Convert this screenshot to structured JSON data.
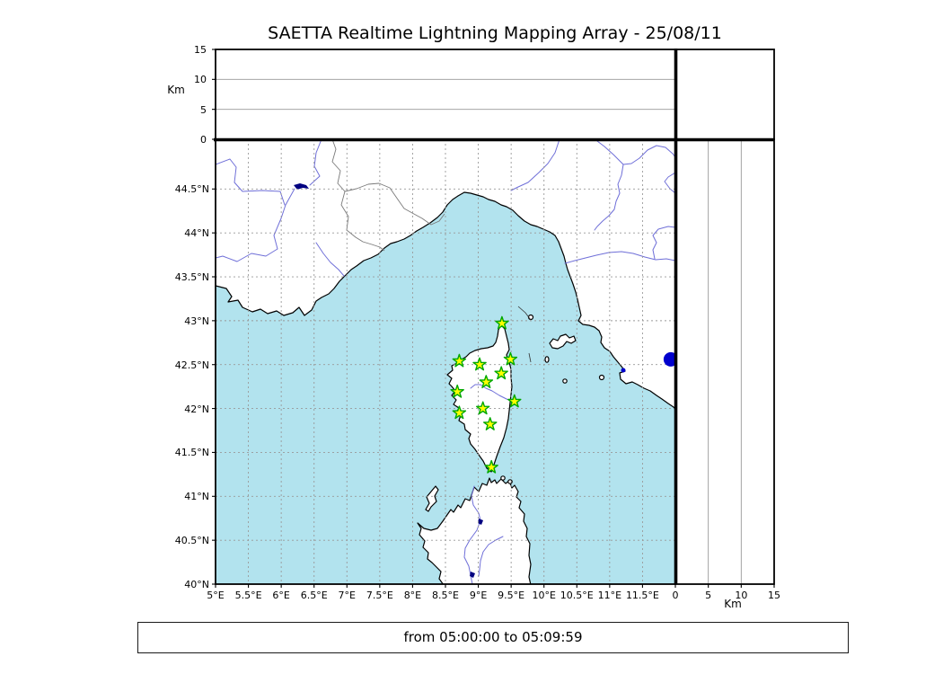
{
  "title": "SAETTA Realtime Lightning Mapping Array - 25/08/11",
  "time_range": "from 05:00:00 to 05:09:59",
  "colors": {
    "sea": "#b2e3ee",
    "land": "#ffffff",
    "coastline": "#000000",
    "river": "#6f6fd8",
    "country_border": "#7a7a7a",
    "gridline": "#999999",
    "frame": "#000000",
    "station_fill": "#ffff00",
    "station_stroke": "#00a800",
    "event_dot": "#0000cd",
    "lake": "#000080"
  },
  "map_axes": {
    "lon_range": [
      5,
      12
    ],
    "lat_range": [
      40,
      45.066
    ],
    "lon_tick_values": [
      5,
      5.5,
      6,
      6.5,
      7,
      7.5,
      8,
      8.5,
      9,
      9.5,
      10,
      10.5,
      11,
      11.5
    ],
    "lon_tick_labels": [
      "5°E",
      "5.5°E",
      "6°E",
      "6.5°E",
      "7°E",
      "7.5°E",
      "8°E",
      "8.5°E",
      "9°E",
      "9.5°E",
      "10°E",
      "10.5°E",
      "11°E",
      "11.5°E"
    ],
    "lat_tick_values": [
      40,
      40.5,
      41,
      41.5,
      42,
      42.5,
      43,
      43.5,
      44,
      44.5
    ],
    "lat_tick_labels": [
      "40°N",
      "40.5°N",
      "41°N",
      "41.5°N",
      "42°N",
      "42.5°N",
      "43°N",
      "43.5°N",
      "44°N",
      "44.5°N"
    ]
  },
  "altitude_axis": {
    "label": "Km",
    "range": [
      0,
      15
    ],
    "tick_values": [
      0,
      5,
      10,
      15
    ],
    "tick_labels": [
      "0",
      "5",
      "10",
      "15"
    ],
    "gridline_values": [
      5,
      10
    ]
  },
  "stations": [
    {
      "marker": "star",
      "lon": 9.36,
      "lat": 42.97
    },
    {
      "marker": "star",
      "lon": 8.71,
      "lat": 42.54
    },
    {
      "marker": "star",
      "lon": 9.02,
      "lat": 42.5
    },
    {
      "marker": "star",
      "lon": 9.49,
      "lat": 42.56
    },
    {
      "marker": "star",
      "lon": 9.35,
      "lat": 42.4
    },
    {
      "marker": "star",
      "lon": 9.12,
      "lat": 42.3
    },
    {
      "marker": "star",
      "lon": 8.68,
      "lat": 42.19
    },
    {
      "marker": "star",
      "lon": 9.55,
      "lat": 42.08
    },
    {
      "marker": "star",
      "lon": 9.07,
      "lat": 42.0
    },
    {
      "marker": "star",
      "lon": 8.71,
      "lat": 41.95
    },
    {
      "marker": "star",
      "lon": 9.18,
      "lat": 41.82
    },
    {
      "marker": "star",
      "lon": 9.2,
      "lat": 41.33
    }
  ],
  "event_marker": {
    "marker": "circle",
    "lon": 11.93,
    "lat": 42.56
  }
}
